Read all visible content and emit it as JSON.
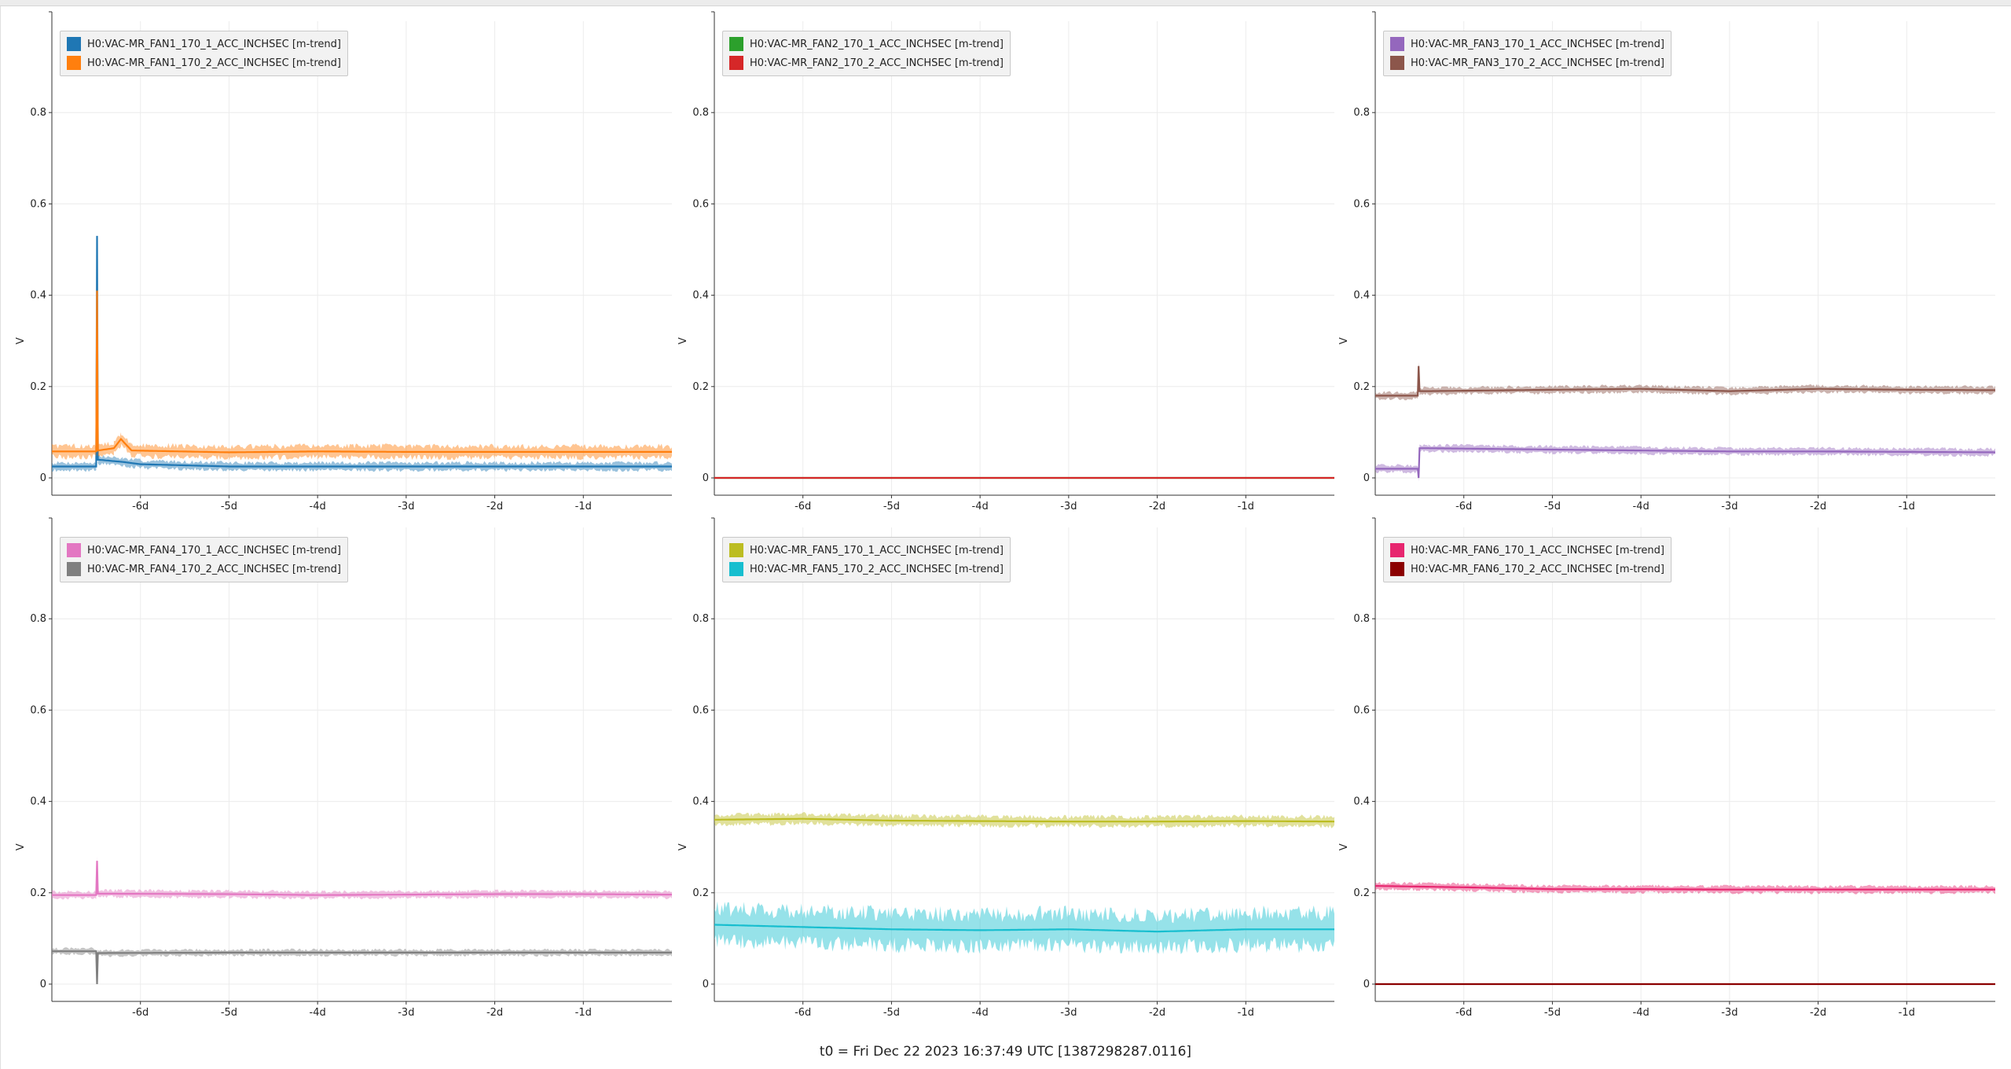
{
  "footer": {
    "text": "t0 = Fri Dec 22 2023 16:37:49 UTC [1387298287.0116]"
  },
  "chart_data": [
    {
      "type": "line",
      "ylabel": "V",
      "ylim": [
        0,
        1.0
      ],
      "yticks": [
        "0",
        "0.2",
        "0.4",
        "0.6",
        "0.8"
      ],
      "xlim": [
        -7.0,
        0.0
      ],
      "xticks": [
        {
          "value": -6,
          "label": "-6d"
        },
        {
          "value": -5,
          "label": "-5d"
        },
        {
          "value": -4,
          "label": "-4d"
        },
        {
          "value": -3,
          "label": "-3d"
        },
        {
          "value": -2,
          "label": "-2d"
        },
        {
          "value": -1,
          "label": "-1d"
        }
      ],
      "grid": true,
      "legend_position": "top-left",
      "series": [
        {
          "name": "H0:VAC-MR_FAN1_170_1_ACC_INCHSEC [m-trend]",
          "color": "#1f77b4",
          "x": [
            -7.0,
            -6.5,
            -6.49,
            -6.48,
            -6.2,
            -6.0,
            -5.0,
            -4.0,
            -3.0,
            -2.0,
            -1.0,
            0.0
          ],
          "y": [
            0.025,
            0.025,
            0.53,
            0.04,
            0.035,
            0.03,
            0.025,
            0.025,
            0.025,
            0.025,
            0.025,
            0.025
          ],
          "band": 0.008
        },
        {
          "name": "H0:VAC-MR_FAN1_170_2_ACC_INCHSEC [m-trend]",
          "color": "#ff7f0e",
          "x": [
            -7.0,
            -6.5,
            -6.49,
            -6.48,
            -6.3,
            -6.22,
            -6.1,
            -5.0,
            -4.0,
            -3.0,
            -2.0,
            -1.0,
            0.0
          ],
          "y": [
            0.058,
            0.058,
            0.41,
            0.06,
            0.065,
            0.085,
            0.06,
            0.056,
            0.058,
            0.057,
            0.057,
            0.057,
            0.057
          ],
          "band": 0.012
        }
      ]
    },
    {
      "type": "line",
      "ylabel": "V",
      "ylim": [
        0,
        1.0
      ],
      "yticks": [
        "0",
        "0.2",
        "0.4",
        "0.6",
        "0.8"
      ],
      "xlim": [
        -7.0,
        0.0
      ],
      "xticks": [
        {
          "value": -6,
          "label": "-6d"
        },
        {
          "value": -5,
          "label": "-5d"
        },
        {
          "value": -4,
          "label": "-4d"
        },
        {
          "value": -3,
          "label": "-3d"
        },
        {
          "value": -2,
          "label": "-2d"
        },
        {
          "value": -1,
          "label": "-1d"
        }
      ],
      "grid": true,
      "legend_position": "top-left",
      "series": [
        {
          "name": "H0:VAC-MR_FAN2_170_1_ACC_INCHSEC [m-trend]",
          "color": "#2ca02c",
          "x": [
            -7.0,
            0.0
          ],
          "y": [
            0.0,
            0.0
          ],
          "band": 0.0
        },
        {
          "name": "H0:VAC-MR_FAN2_170_2_ACC_INCHSEC [m-trend]",
          "color": "#d62728",
          "x": [
            -7.0,
            0.0
          ],
          "y": [
            0.0,
            0.0
          ],
          "band": 0.0
        }
      ]
    },
    {
      "type": "line",
      "ylabel": "V",
      "ylim": [
        0,
        1.0
      ],
      "yticks": [
        "0",
        "0.2",
        "0.4",
        "0.6",
        "0.8"
      ],
      "xlim": [
        -7.0,
        0.0
      ],
      "xticks": [
        {
          "value": -6,
          "label": "-6d"
        },
        {
          "value": -5,
          "label": "-5d"
        },
        {
          "value": -4,
          "label": "-4d"
        },
        {
          "value": -3,
          "label": "-3d"
        },
        {
          "value": -2,
          "label": "-2d"
        },
        {
          "value": -1,
          "label": "-1d"
        }
      ],
      "grid": true,
      "legend_position": "top-left",
      "series": [
        {
          "name": "H0:VAC-MR_FAN3_170_1_ACC_INCHSEC [m-trend]",
          "color": "#9467bd",
          "x": [
            -7.0,
            -6.52,
            -6.51,
            -6.5,
            -6.4,
            -5.0,
            -4.0,
            -3.0,
            -2.0,
            -1.0,
            0.0
          ],
          "y": [
            0.02,
            0.02,
            0.0,
            0.065,
            0.065,
            0.062,
            0.06,
            0.058,
            0.058,
            0.057,
            0.056
          ],
          "band": 0.007
        },
        {
          "name": "H0:VAC-MR_FAN3_170_2_ACC_INCHSEC [m-trend]",
          "color": "#8c564b",
          "x": [
            -7.0,
            -6.52,
            -6.51,
            -6.5,
            -6.4,
            -5.0,
            -4.0,
            -3.0,
            -2.0,
            -1.0,
            0.0
          ],
          "y": [
            0.18,
            0.18,
            0.245,
            0.19,
            0.19,
            0.193,
            0.195,
            0.19,
            0.195,
            0.193,
            0.192
          ],
          "band": 0.007
        }
      ]
    },
    {
      "type": "line",
      "ylabel": "V",
      "ylim": [
        0,
        1.0
      ],
      "yticks": [
        "0",
        "0.2",
        "0.4",
        "0.6",
        "0.8"
      ],
      "xlim": [
        -7.0,
        0.0
      ],
      "xticks": [
        {
          "value": -6,
          "label": "-6d"
        },
        {
          "value": -5,
          "label": "-5d"
        },
        {
          "value": -4,
          "label": "-4d"
        },
        {
          "value": -3,
          "label": "-3d"
        },
        {
          "value": -2,
          "label": "-2d"
        },
        {
          "value": -1,
          "label": "-1d"
        }
      ],
      "grid": true,
      "legend_position": "top-left",
      "series": [
        {
          "name": "H0:VAC-MR_FAN4_170_1_ACC_INCHSEC [m-trend]",
          "color": "#e377c2",
          "x": [
            -7.0,
            -6.5,
            -6.49,
            -6.48,
            -5.0,
            -4.0,
            -3.0,
            -2.0,
            -1.0,
            0.0
          ],
          "y": [
            0.195,
            0.195,
            0.27,
            0.198,
            0.197,
            0.195,
            0.196,
            0.197,
            0.197,
            0.196
          ],
          "band": 0.007
        },
        {
          "name": "H0:VAC-MR_FAN4_170_2_ACC_INCHSEC [m-trend]",
          "color": "#7f7f7f",
          "x": [
            -7.0,
            -6.5,
            -6.49,
            -6.48,
            -5.0,
            -4.0,
            -3.0,
            -2.0,
            -1.0,
            0.0
          ],
          "y": [
            0.072,
            0.072,
            0.0,
            0.068,
            0.069,
            0.069,
            0.069,
            0.069,
            0.069,
            0.069
          ],
          "band": 0.006
        }
      ]
    },
    {
      "type": "line",
      "ylabel": "V",
      "ylim": [
        0,
        1.0
      ],
      "yticks": [
        "0",
        "0.2",
        "0.4",
        "0.6",
        "0.8"
      ],
      "xlim": [
        -7.0,
        0.0
      ],
      "xticks": [
        {
          "value": -6,
          "label": "-6d"
        },
        {
          "value": -5,
          "label": "-5d"
        },
        {
          "value": -4,
          "label": "-4d"
        },
        {
          "value": -3,
          "label": "-3d"
        },
        {
          "value": -2,
          "label": "-2d"
        },
        {
          "value": -1,
          "label": "-1d"
        }
      ],
      "grid": true,
      "legend_position": "top-left",
      "series": [
        {
          "name": "H0:VAC-MR_FAN5_170_1_ACC_INCHSEC [m-trend]",
          "color": "#bcbd22",
          "x": [
            -7.0,
            -6.0,
            -5.0,
            -4.0,
            -3.0,
            -2.0,
            -1.0,
            0.0
          ],
          "y": [
            0.36,
            0.362,
            0.358,
            0.357,
            0.356,
            0.356,
            0.357,
            0.356
          ],
          "band": 0.01
        },
        {
          "name": "H0:VAC-MR_FAN5_170_2_ACC_INCHSEC [m-trend]",
          "color": "#17becf",
          "x": [
            -7.0,
            -6.0,
            -5.0,
            -4.0,
            -3.0,
            -2.0,
            -1.0,
            0.0
          ],
          "y": [
            0.13,
            0.125,
            0.12,
            0.118,
            0.12,
            0.115,
            0.12,
            0.12
          ],
          "band": 0.035
        }
      ]
    },
    {
      "type": "line",
      "ylabel": "V",
      "ylim": [
        0,
        1.0
      ],
      "yticks": [
        "0",
        "0.2",
        "0.4",
        "0.6",
        "0.8"
      ],
      "xlim": [
        -7.0,
        0.0
      ],
      "xticks": [
        {
          "value": -6,
          "label": "-6d"
        },
        {
          "value": -5,
          "label": "-5d"
        },
        {
          "value": -4,
          "label": "-4d"
        },
        {
          "value": -3,
          "label": "-3d"
        },
        {
          "value": -2,
          "label": "-2d"
        },
        {
          "value": -1,
          "label": "-1d"
        }
      ],
      "grid": true,
      "legend_position": "top-left",
      "series": [
        {
          "name": "H0:VAC-MR_FAN6_170_1_ACC_INCHSEC [m-trend]",
          "color": "#e7266f",
          "x": [
            -7.0,
            -6.0,
            -5.0,
            -4.0,
            -3.0,
            -2.0,
            -1.0,
            0.0
          ],
          "y": [
            0.215,
            0.212,
            0.208,
            0.208,
            0.207,
            0.207,
            0.207,
            0.207
          ],
          "band": 0.007
        },
        {
          "name": "H0:VAC-MR_FAN6_170_2_ACC_INCHSEC [m-trend]",
          "color": "#8b0000",
          "x": [
            -7.0,
            0.0
          ],
          "y": [
            0.0,
            0.0
          ],
          "band": 0.0
        }
      ]
    }
  ]
}
